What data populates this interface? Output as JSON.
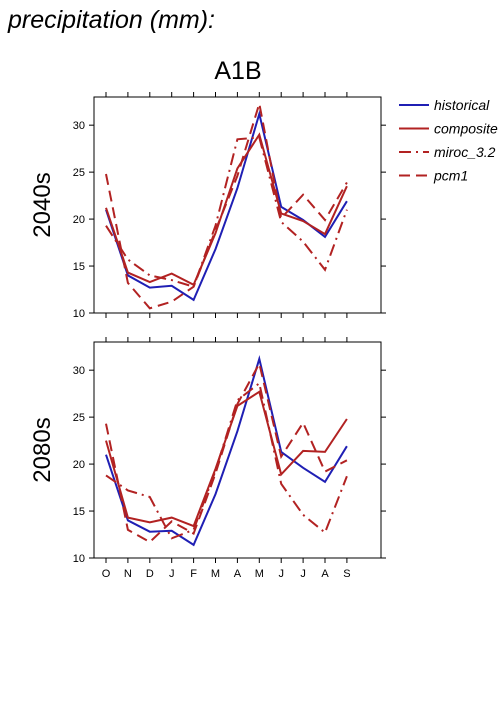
{
  "header": {
    "title": "precipitation (mm):",
    "scenario": "A1B"
  },
  "chart_data": {
    "type": "line",
    "categories": [
      "O",
      "N",
      "D",
      "J",
      "F",
      "M",
      "A",
      "M",
      "J",
      "J",
      "A",
      "S"
    ],
    "ylim": [
      10,
      33
    ],
    "yticks": [
      10,
      15,
      20,
      25,
      30
    ],
    "legend_position": "top-right (outside)",
    "legend": [
      {
        "name": "historical",
        "color": "#1f1fb4",
        "dash": "solid"
      },
      {
        "name": "composite",
        "color": "#b22222",
        "dash": "solid"
      },
      {
        "name": "miroc_3.2",
        "color": "#b22222",
        "dash": "dashdot"
      },
      {
        "name": "pcm1",
        "color": "#b22222",
        "dash": "dashed"
      }
    ],
    "panels": [
      {
        "label": "2040s",
        "series": [
          {
            "name": "historical",
            "values": [
              21.0,
              14.0,
              12.7,
              12.9,
              11.4,
              16.8,
              23.3,
              31.2,
              21.3,
              19.9,
              18.1,
              21.9
            ]
          },
          {
            "name": "composite",
            "values": [
              21.2,
              14.3,
              13.3,
              14.2,
              13.0,
              18.5,
              25.4,
              29.0,
              20.6,
              19.8,
              18.4,
              23.5
            ]
          },
          {
            "name": "miroc_3.2",
            "values": [
              19.3,
              15.7,
              14.0,
              13.5,
              12.8,
              19.3,
              28.5,
              28.7,
              19.7,
              17.6,
              14.6,
              21.0
            ]
          },
          {
            "name": "pcm1",
            "values": [
              24.8,
              13.2,
              10.5,
              11.2,
              12.8,
              18.8,
              24.6,
              32.3,
              20.1,
              22.6,
              19.9,
              23.9
            ]
          }
        ]
      },
      {
        "label": "2080s",
        "series": [
          {
            "name": "historical",
            "values": [
              21.0,
              14.0,
              12.8,
              12.9,
              11.4,
              16.8,
              23.5,
              31.2,
              21.3,
              19.6,
              18.1,
              21.9
            ]
          },
          {
            "name": "composite",
            "values": [
              22.5,
              14.3,
              13.8,
              14.3,
              13.4,
              19.5,
              26.2,
              27.7,
              18.9,
              21.4,
              21.3,
              24.8
            ]
          },
          {
            "name": "miroc_3.2",
            "values": [
              18.8,
              17.2,
              16.5,
              12.1,
              13.0,
              19.3,
              26.8,
              28.6,
              17.9,
              14.6,
              12.7,
              18.7
            ]
          },
          {
            "name": "pcm1",
            "values": [
              24.3,
              13.0,
              11.7,
              13.9,
              12.6,
              19.0,
              26.4,
              30.7,
              20.8,
              24.4,
              19.2,
              20.4
            ]
          }
        ]
      }
    ]
  }
}
